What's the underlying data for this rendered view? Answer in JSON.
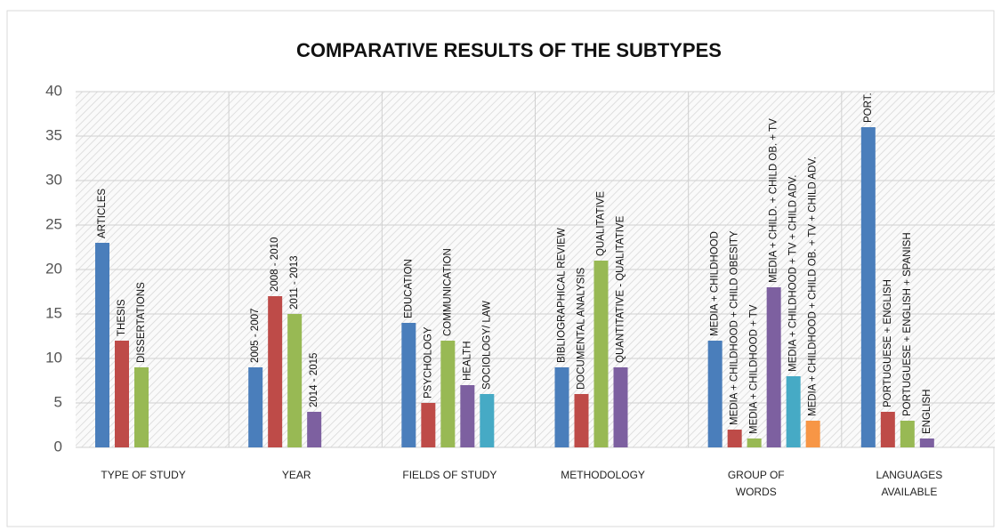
{
  "chart_data": {
    "type": "bar",
    "title": "COMPARATIVE RESULTS OF THE SUBTYPES",
    "colors": [
      "#4a7ebb",
      "#be4b48",
      "#98b954",
      "#7d60a0",
      "#46aac5",
      "#f79646"
    ],
    "ylim": [
      0,
      40
    ],
    "yticks": [
      0,
      5,
      10,
      15,
      20,
      25,
      30,
      35,
      40
    ],
    "grid": true,
    "groups": [
      {
        "name": "TYPE OF STUDY",
        "bars": [
          {
            "label": "ARTICLES",
            "value": 23
          },
          {
            "label": "THESIS",
            "value": 12
          },
          {
            "label": "DISSERTATIONS",
            "value": 9
          }
        ]
      },
      {
        "name": "YEAR",
        "bars": [
          {
            "label": "2005 - 2007",
            "value": 9
          },
          {
            "label": "2008 - 2010",
            "value": 17
          },
          {
            "label": "2011 - 2013",
            "value": 15
          },
          {
            "label": "2014 - 2015",
            "value": 4
          }
        ]
      },
      {
        "name": "FIELDS OF STUDY",
        "bars": [
          {
            "label": "EDUCATION",
            "value": 14
          },
          {
            "label": "PSYCHOLOGY",
            "value": 5
          },
          {
            "label": "COMMUNICATION",
            "value": 12
          },
          {
            "label": "HEALTH",
            "value": 7
          },
          {
            "label": "SOCIOLOGY/ LAW",
            "value": 6
          }
        ]
      },
      {
        "name": "METHODOLOGY",
        "bars": [
          {
            "label": "BIBLIOGRAPHICAL REVIEW",
            "value": 9
          },
          {
            "label": "DOCUMENTAL ANALYSIS",
            "value": 6
          },
          {
            "label": "QUALITATIVE",
            "value": 21
          },
          {
            "label": "QUANTITATIVE - QUALITATIVE",
            "value": 9
          }
        ]
      },
      {
        "name": "GROUP OF WORDS",
        "bars": [
          {
            "label": "MEDIA + CHILDHOOD",
            "value": 12
          },
          {
            "label": "MEDIA + CHILDHOOD + CHILD OBESITY",
            "value": 2
          },
          {
            "label": "MEDIA + CHILDHOOD + TV",
            "value": 1
          },
          {
            "label": "MEDIA + CHILD. + CHILD OB. + TV",
            "value": 18
          },
          {
            "label": "MEDIA + CHILDHOOD + TV + CHILD ADV.",
            "value": 8
          },
          {
            "label": "MEDIA + CHILDHOOD + CHILD OB. + TV + CHILD ADV.",
            "value": 3
          }
        ]
      },
      {
        "name": "LANGUAGES AVAILABLE",
        "bars": [
          {
            "label": "PORT.",
            "value": 36
          },
          {
            "label": "PORTUGUESE + ENGLISH",
            "value": 4
          },
          {
            "label": "PORTUGUESE + ENGLISH + SPANISH",
            "value": 3
          },
          {
            "label": "ENGLISH",
            "value": 1
          }
        ]
      }
    ]
  }
}
